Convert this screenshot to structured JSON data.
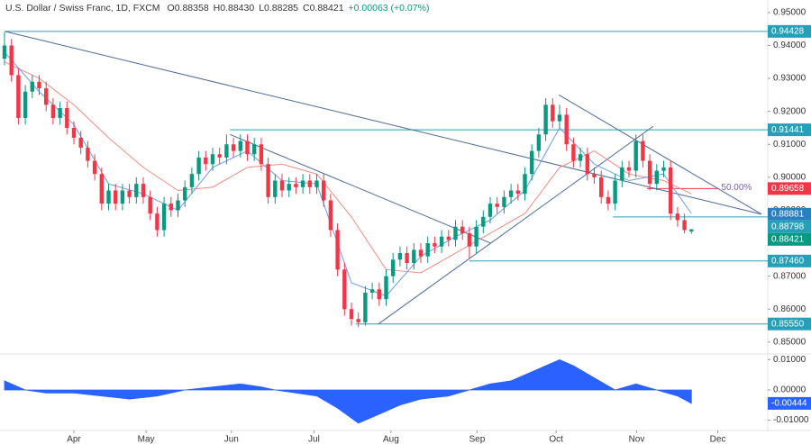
{
  "chart_data": [
    {
      "type": "candlestick",
      "title": "U.S. Dollar / Swiss Franc, 1D, FXCM",
      "ohlc_text": [
        "O0.88358",
        "H0.88430",
        "L0.88285",
        "C0.88421",
        "+0.00063 (+0.07%)"
      ],
      "open": [
        0.936,
        0.94,
        0.931,
        0.918,
        0.926,
        0.929,
        0.927,
        0.922,
        0.918,
        0.921,
        0.915,
        0.912,
        0.909,
        0.905,
        0.901,
        0.892,
        0.896,
        0.892,
        0.896,
        0.894,
        0.898,
        0.894,
        0.889,
        0.884,
        0.892,
        0.89,
        0.893,
        0.897,
        0.901,
        0.906,
        0.904,
        0.907,
        0.906,
        0.91,
        0.908,
        0.911,
        0.907,
        0.91,
        0.904,
        0.894,
        0.899,
        0.896,
        0.898,
        0.897,
        0.899,
        0.897,
        0.899,
        0.893,
        0.884,
        0.872,
        0.86,
        0.857,
        0.856,
        0.865,
        0.866,
        0.863,
        0.87,
        0.875,
        0.877,
        0.874,
        0.878,
        0.876,
        0.88,
        0.879,
        0.882,
        0.881,
        0.885,
        0.883,
        0.879,
        0.885,
        0.888,
        0.892,
        0.891,
        0.894,
        0.896,
        0.895,
        0.901,
        0.908,
        0.913,
        0.922,
        0.917,
        0.919,
        0.91,
        0.905,
        0.907,
        0.901,
        0.9,
        0.894,
        0.892,
        0.899,
        0.903,
        0.902,
        0.911,
        0.905,
        0.898,
        0.902,
        0.903,
        0.889,
        0.887,
        0.88358
      ],
      "high": [
        0.944,
        0.942,
        0.933,
        0.928,
        0.931,
        0.931,
        0.929,
        0.924,
        0.923,
        0.923,
        0.917,
        0.914,
        0.911,
        0.907,
        0.903,
        0.898,
        0.898,
        0.898,
        0.898,
        0.9,
        0.9,
        0.896,
        0.891,
        0.894,
        0.894,
        0.895,
        0.899,
        0.903,
        0.908,
        0.908,
        0.909,
        0.909,
        0.913,
        0.912,
        0.913,
        0.913,
        0.912,
        0.912,
        0.906,
        0.901,
        0.901,
        0.9,
        0.9,
        0.901,
        0.901,
        0.901,
        0.901,
        0.895,
        0.886,
        0.874,
        0.862,
        0.859,
        0.867,
        0.868,
        0.868,
        0.872,
        0.877,
        0.879,
        0.879,
        0.88,
        0.88,
        0.882,
        0.882,
        0.884,
        0.884,
        0.887,
        0.887,
        0.885,
        0.887,
        0.89,
        0.894,
        0.894,
        0.896,
        0.898,
        0.898,
        0.903,
        0.91,
        0.915,
        0.924,
        0.924,
        0.922,
        0.921,
        0.912,
        0.909,
        0.909,
        0.903,
        0.902,
        0.896,
        0.901,
        0.905,
        0.905,
        0.913,
        0.913,
        0.907,
        0.904,
        0.905,
        0.905,
        0.891,
        0.889,
        0.8843
      ],
      "low": [
        0.934,
        0.929,
        0.916,
        0.916,
        0.924,
        0.925,
        0.92,
        0.916,
        0.916,
        0.913,
        0.91,
        0.907,
        0.903,
        0.899,
        0.89,
        0.89,
        0.89,
        0.89,
        0.892,
        0.892,
        0.892,
        0.887,
        0.882,
        0.882,
        0.888,
        0.888,
        0.891,
        0.895,
        0.899,
        0.902,
        0.902,
        0.904,
        0.904,
        0.906,
        0.906,
        0.905,
        0.905,
        0.902,
        0.892,
        0.892,
        0.894,
        0.894,
        0.895,
        0.895,
        0.895,
        0.895,
        0.891,
        0.882,
        0.87,
        0.858,
        0.855,
        0.8545,
        0.855,
        0.863,
        0.861,
        0.861,
        0.868,
        0.873,
        0.872,
        0.872,
        0.874,
        0.874,
        0.877,
        0.877,
        0.879,
        0.879,
        0.881,
        0.8755,
        0.877,
        0.883,
        0.886,
        0.889,
        0.889,
        0.892,
        0.893,
        0.893,
        0.899,
        0.906,
        0.911,
        0.915,
        0.915,
        0.908,
        0.903,
        0.903,
        0.899,
        0.898,
        0.892,
        0.89,
        0.89,
        0.897,
        0.9,
        0.9,
        0.903,
        0.896,
        0.896,
        0.9,
        0.887,
        0.885,
        0.883,
        0.88285
      ],
      "close": [
        0.94,
        0.931,
        0.918,
        0.926,
        0.929,
        0.927,
        0.922,
        0.918,
        0.921,
        0.915,
        0.912,
        0.909,
        0.905,
        0.901,
        0.892,
        0.896,
        0.892,
        0.896,
        0.894,
        0.898,
        0.894,
        0.889,
        0.884,
        0.892,
        0.89,
        0.893,
        0.897,
        0.901,
        0.906,
        0.904,
        0.907,
        0.906,
        0.91,
        0.908,
        0.911,
        0.907,
        0.91,
        0.904,
        0.894,
        0.899,
        0.896,
        0.898,
        0.897,
        0.899,
        0.897,
        0.899,
        0.893,
        0.884,
        0.872,
        0.86,
        0.857,
        0.856,
        0.865,
        0.866,
        0.863,
        0.87,
        0.875,
        0.877,
        0.874,
        0.878,
        0.876,
        0.88,
        0.879,
        0.882,
        0.881,
        0.885,
        0.883,
        0.879,
        0.885,
        0.888,
        0.892,
        0.891,
        0.894,
        0.896,
        0.895,
        0.901,
        0.908,
        0.913,
        0.922,
        0.917,
        0.919,
        0.91,
        0.905,
        0.907,
        0.901,
        0.9,
        0.894,
        0.892,
        0.899,
        0.903,
        0.902,
        0.911,
        0.905,
        0.898,
        0.902,
        0.903,
        0.889,
        0.887,
        0.884,
        0.88421
      ],
      "up_color": "#089981",
      "down_color": "#f23645",
      "lines": [
        {
          "color": "#f28b82",
          "x": [
            0,
            5,
            10,
            15,
            20,
            25,
            30,
            35,
            40,
            45,
            50,
            55,
            60,
            65,
            70,
            75,
            80,
            85,
            90,
            95,
            99
          ],
          "values": [
            0.935,
            0.93,
            0.922,
            0.912,
            0.903,
            0.896,
            0.897,
            0.903,
            0.904,
            0.901,
            0.888,
            0.872,
            0.871,
            0.877,
            0.883,
            0.889,
            0.903,
            0.908,
            0.901,
            0.899,
            0.895
          ]
        },
        {
          "color": "#6c9cf0",
          "x": [
            0,
            5,
            10,
            15,
            20,
            25,
            30,
            35,
            40,
            45,
            50,
            55,
            60,
            65,
            70,
            75,
            80,
            85,
            90,
            95,
            99
          ],
          "values": [
            0.938,
            0.926,
            0.916,
            0.898,
            0.895,
            0.89,
            0.903,
            0.908,
            0.899,
            0.898,
            0.868,
            0.864,
            0.876,
            0.882,
            0.887,
            0.896,
            0.915,
            0.904,
            0.899,
            0.901,
            0.889
          ]
        }
      ],
      "trendlines": [
        {
          "x": [
            0,
            109.1
          ],
          "y": [
            0.9443,
            0.8888
          ]
        },
        {
          "x": [
            32.5,
            70.1
          ],
          "y": [
            0.913,
            0.88
          ]
        },
        {
          "x": [
            53.9,
            93.5
          ],
          "y": [
            0.8555,
            0.9155
          ]
        },
        {
          "x": [
            79.9,
            109.1
          ],
          "y": [
            0.925,
            0.8888
          ]
        }
      ],
      "trendline_color": "#4a6a9a",
      "levels": [
        {
          "value": 0.94428,
          "label": "0.94428",
          "x_start": 0,
          "color": "#26a0b8"
        },
        {
          "value": 0.91441,
          "label": "0.91441",
          "x_start": 32.5,
          "color": "#26a0b8"
        },
        {
          "value": 0.8746,
          "label": "0.87460",
          "x_start": 67,
          "color": "#26a0b8"
        },
        {
          "value": 0.8555,
          "label": "0.85550",
          "x_start": 50.6,
          "color": "#26a0b8"
        },
        {
          "value": 0.88798,
          "label": "0.88798",
          "x_start": 87.7,
          "color": "#26a0b8"
        },
        {
          "value": 0.89658,
          "label": "0.89658",
          "x_start": 92.6,
          "x_end": 103,
          "color": "#f23645"
        }
      ],
      "price_labels": [
        {
          "value": 0.88881,
          "label": "0.88881",
          "color": "#2a7fc0"
        },
        {
          "value": 0.88421,
          "label": "0.88421",
          "color": "#089981"
        }
      ],
      "annotations": [
        {
          "text": "50.00%",
          "x": 103.3,
          "y": 0.8966,
          "color": "#7a5fa8"
        }
      ],
      "xlim": [
        -0.65,
        110
      ],
      "xticks": [
        {
          "value": 10,
          "label": "Apr"
        },
        {
          "value": 20.4,
          "label": "May"
        },
        {
          "value": 32.7,
          "label": "Jun"
        },
        {
          "value": 44.6,
          "label": "Jul"
        },
        {
          "value": 55.7,
          "label": "Aug"
        },
        {
          "value": 68.1,
          "label": "Sep"
        },
        {
          "value": 79.5,
          "label": "Oct"
        },
        {
          "value": 91.1,
          "label": "Nov"
        },
        {
          "value": 102.8,
          "label": "Dec"
        }
      ],
      "ylim": [
        0.8464,
        0.9538
      ],
      "yticks": [
        {
          "value": 0.95,
          "label": "0.95000"
        },
        {
          "value": 0.94,
          "label": "0.94000"
        },
        {
          "value": 0.93,
          "label": "0.93000"
        },
        {
          "value": 0.92,
          "label": "0.92000"
        },
        {
          "value": 0.91,
          "label": "0.91000"
        },
        {
          "value": 0.9,
          "label": "0.90000"
        },
        {
          "value": 0.89,
          "label": "0.89000"
        },
        {
          "value": 0.88,
          "label": "0.88000"
        },
        {
          "value": 0.87,
          "label": "0.87000"
        },
        {
          "value": 0.86,
          "label": "0.86000"
        },
        {
          "value": 0.85,
          "label": "0.85000"
        }
      ]
    },
    {
      "type": "area",
      "color": "#2962ff",
      "x": [
        0,
        3,
        6,
        10,
        14,
        18,
        22,
        26,
        30,
        34,
        37,
        39,
        42,
        45,
        48,
        51,
        54,
        57,
        60,
        64,
        67,
        70,
        73,
        76,
        79,
        80,
        82,
        85,
        88,
        91,
        94,
        97,
        99
      ],
      "values": [
        0.003,
        0.0,
        -0.001,
        -0.001,
        -0.002,
        -0.003,
        -0.002,
        0.0,
        0.001,
        0.002,
        0.001,
        0.0,
        -0.001,
        -0.002,
        -0.006,
        -0.011,
        -0.008,
        -0.005,
        -0.003,
        -0.002,
        0.0,
        0.002,
        0.003,
        0.006,
        0.009,
        0.01,
        0.008,
        0.004,
        0.0,
        0.002,
        0.0,
        -0.002,
        -0.00444
      ],
      "price_labels": [
        {
          "value": -0.00444,
          "label": "-0.00444",
          "color": "#2962ff"
        }
      ],
      "ylim": [
        -0.0134,
        0.0119
      ],
      "yticks": [
        {
          "value": 0.01,
          "label": "0.01000"
        },
        {
          "value": 0,
          "label": "0.00000"
        },
        {
          "value": -0.01,
          "label": "-0.01000"
        }
      ]
    }
  ]
}
